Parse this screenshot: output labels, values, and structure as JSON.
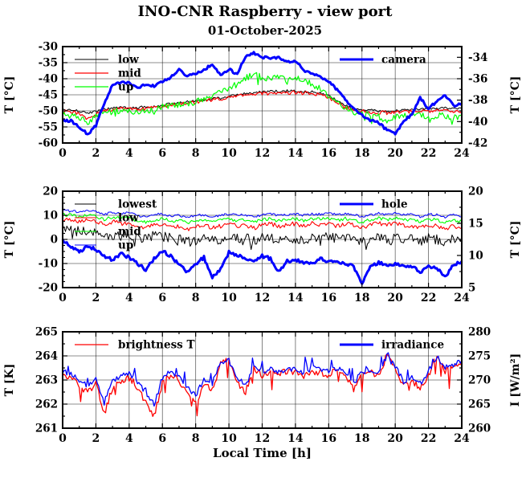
{
  "page": {
    "title": "INO-CNR Raspberry - view port",
    "subtitle": "01-October-2025",
    "xlabel": "Local Time [h]"
  },
  "colors": {
    "black": "#000000",
    "red": "#ff0000",
    "green": "#00ff00",
    "blue": "#0000ff",
    "frame": "#000000",
    "grid": "#000000"
  },
  "chart_data": [
    {
      "type": "line",
      "name": "viewport-temperatures",
      "x_range": [
        0,
        24
      ],
      "axes": {
        "x": {
          "ticks": [
            0,
            2,
            4,
            6,
            8,
            10,
            12,
            14,
            16,
            18,
            20,
            22,
            24
          ],
          "minor_step": 1,
          "label": ""
        },
        "left": {
          "label": "T [°C]",
          "range": [
            -60,
            -30
          ],
          "ticks": [
            -30,
            -35,
            -40,
            -45,
            -50,
            -55,
            -60
          ],
          "minor_step": 2.5
        },
        "right": {
          "label": "T [°C]",
          "range": [
            -42,
            -33
          ],
          "ticks": [
            -34,
            -36,
            -38,
            -40,
            -42
          ],
          "minor_step": 1
        }
      },
      "series": [
        {
          "name": "low",
          "color": "#000000",
          "axis": "left",
          "width": 1.0,
          "noise": 0.4,
          "legend": "left",
          "values": [
            -49.5,
            -49.5,
            -50.0,
            -50.6,
            -50.2,
            -49.6,
            -49.2,
            -49.0,
            -49.0,
            -49.0,
            -48.7,
            -48.6,
            -48.2,
            -47.8,
            -47.6,
            -47.2,
            -47.0,
            -46.6,
            -46.2,
            -46.0,
            -45.5,
            -45.0,
            -44.6,
            -44.4,
            -44.1,
            -44.0,
            -43.9,
            -43.8,
            -43.8,
            -44.0,
            -44.1,
            -44.4,
            -45.4,
            -46.8,
            -48.4,
            -49.4,
            -49.6,
            -49.8,
            -50.0,
            -50.1,
            -50.0,
            -49.8,
            -49.5,
            -49.3,
            -49.5,
            -49.3,
            -49.0,
            -49.3,
            -49.3
          ]
        },
        {
          "name": "mid",
          "color": "#ff0000",
          "axis": "left",
          "width": 1.2,
          "noise": 0.55,
          "legend": "left",
          "values": [
            -50.2,
            -50.4,
            -50.8,
            -52.6,
            -51.0,
            -50.0,
            -49.6,
            -49.4,
            -49.4,
            -49.5,
            -49.2,
            -49.0,
            -48.6,
            -48.2,
            -48.0,
            -47.6,
            -47.3,
            -46.9,
            -46.5,
            -46.3,
            -45.8,
            -45.3,
            -45.0,
            -44.8,
            -44.6,
            -44.5,
            -44.4,
            -44.4,
            -44.3,
            -44.5,
            -44.6,
            -45.0,
            -45.9,
            -47.3,
            -48.9,
            -49.9,
            -50.1,
            -50.3,
            -50.5,
            -50.6,
            -50.5,
            -50.3,
            -50.2,
            -50.0,
            -50.2,
            -50.0,
            -49.8,
            -50.0,
            -50.0
          ]
        },
        {
          "name": "up",
          "color": "#00ff00",
          "axis": "left",
          "width": 1.2,
          "noise": 1.0,
          "spike_prob": 0.05,
          "spike_amp": 3,
          "spike_sign": -1,
          "legend": "left",
          "values": [
            -50.8,
            -51.0,
            -51.6,
            -54.0,
            -51.8,
            -50.6,
            -50.2,
            -50.0,
            -50.0,
            -50.2,
            -49.8,
            -49.6,
            -48.8,
            -48.4,
            -48.0,
            -47.6,
            -47.0,
            -46.4,
            -45.6,
            -44.4,
            -43.2,
            -41.6,
            -39.8,
            -38.6,
            -39.6,
            -40.2,
            -39.6,
            -40.2,
            -39.6,
            -41.0,
            -41.6,
            -43.0,
            -45.0,
            -47.4,
            -49.4,
            -50.4,
            -51.0,
            -51.4,
            -51.6,
            -53.4,
            -52.0,
            -51.6,
            -51.0,
            -51.4,
            -52.0,
            -51.6,
            -51.4,
            -52.0,
            -51.6
          ]
        },
        {
          "name": "camera",
          "color": "#0000ff",
          "axis": "right",
          "width": 3.0,
          "noise": 0.12,
          "legend": "right",
          "values": [
            -40.0,
            -39.9,
            -40.5,
            -41.2,
            -40.4,
            -38.3,
            -36.6,
            -36.3,
            -36.4,
            -36.8,
            -36.6,
            -36.7,
            -36.3,
            -35.9,
            -35.2,
            -35.8,
            -35.5,
            -35.2,
            -34.6,
            -35.7,
            -35.1,
            -35.6,
            -33.9,
            -33.6,
            -34.0,
            -34.1,
            -34.0,
            -34.4,
            -34.3,
            -35.2,
            -35.5,
            -35.8,
            -36.3,
            -37.0,
            -37.9,
            -38.8,
            -39.4,
            -39.9,
            -40.1,
            -40.8,
            -41.1,
            -40.0,
            -39.3,
            -37.8,
            -38.8,
            -38.1,
            -37.6,
            -38.5,
            -38.3
          ]
        }
      ]
    },
    {
      "type": "line",
      "name": "ambient-temperatures",
      "x_range": [
        0,
        24
      ],
      "axes": {
        "x": {
          "ticks": [
            0,
            2,
            4,
            6,
            8,
            10,
            12,
            14,
            16,
            18,
            20,
            22,
            24
          ],
          "minor_step": 1,
          "label": ""
        },
        "left": {
          "label": "T [°C]",
          "range": [
            -20,
            20
          ],
          "ticks": [
            20,
            10,
            0,
            -10,
            -20
          ],
          "minor_step": 2.5
        },
        "right": {
          "label": "T [°C]",
          "range": [
            5,
            20
          ],
          "ticks": [
            20,
            15,
            10,
            5
          ],
          "minor_step": 2.5
        }
      },
      "series": [
        {
          "name": "lowest",
          "color": "#000000",
          "axis": "left",
          "width": 1.0,
          "noise": 2.0,
          "spike_prob": 0.05,
          "spike_amp": 3,
          "spike_sign": -1,
          "legend": "left",
          "values": [
            4.5,
            4.0,
            3.5,
            3.0,
            3.0,
            2.0,
            1.5,
            2.5,
            2.0,
            1.0,
            0.5,
            1.5,
            1.5,
            0.5,
            0.0,
            -0.5,
            -1.0,
            0.5,
            -0.5,
            0.0,
            1.0,
            0.5,
            0.5,
            -0.5,
            1.0,
            0.5,
            -0.5,
            0.5,
            0.5,
            0.0,
            0.5,
            0.5,
            1.0,
            0.5,
            0.5,
            0.0,
            -1.0,
            0.5,
            0.5,
            0.0,
            0.5,
            0.0,
            0.0,
            -1.0,
            0.5,
            0.0,
            -1.0,
            0.0,
            1.0
          ]
        },
        {
          "name": "low",
          "color": "#ff0000",
          "axis": "left",
          "width": 1.1,
          "noise": 0.9,
          "legend": "left",
          "values": [
            8.0,
            8.0,
            7.6,
            8.0,
            7.6,
            6.2,
            7.4,
            6.6,
            7.0,
            5.6,
            4.6,
            6.0,
            6.6,
            5.2,
            5.6,
            4.2,
            5.6,
            6.0,
            4.6,
            5.6,
            6.6,
            5.6,
            6.0,
            4.6,
            6.0,
            6.6,
            5.2,
            6.0,
            6.6,
            5.6,
            6.6,
            6.0,
            6.6,
            5.6,
            6.6,
            6.0,
            4.6,
            6.0,
            6.6,
            6.0,
            6.6,
            6.0,
            5.6,
            4.6,
            6.0,
            5.6,
            4.2,
            5.6,
            4.6
          ]
        },
        {
          "name": "mid",
          "color": "#00ff00",
          "axis": "left",
          "width": 1.1,
          "noise": 0.7,
          "legend": "left",
          "values": [
            10.2,
            10.0,
            9.6,
            10.0,
            9.6,
            8.4,
            9.4,
            8.8,
            9.0,
            7.8,
            7.0,
            8.2,
            8.6,
            7.6,
            7.8,
            6.8,
            7.8,
            8.2,
            7.0,
            7.8,
            8.6,
            7.8,
            8.2,
            7.2,
            8.2,
            8.6,
            7.6,
            8.2,
            8.6,
            7.8,
            8.6,
            8.4,
            8.8,
            8.0,
            8.6,
            8.2,
            7.2,
            8.2,
            8.8,
            8.2,
            8.8,
            8.2,
            8.0,
            7.2,
            8.4,
            8.0,
            7.0,
            8.0,
            7.4
          ]
        },
        {
          "name": "up",
          "color": "#0000ff",
          "axis": "left",
          "width": 1.0,
          "noise": 0.5,
          "legend": "left",
          "values": [
            12.0,
            11.8,
            11.5,
            11.8,
            11.5,
            10.5,
            11.2,
            10.8,
            11.0,
            10.0,
            9.2,
            10.2,
            10.6,
            9.8,
            10.0,
            9.2,
            10.0,
            10.2,
            9.2,
            10.0,
            10.6,
            10.0,
            10.2,
            9.4,
            10.2,
            10.6,
            9.8,
            10.2,
            10.6,
            10.0,
            10.6,
            10.4,
            10.8,
            10.2,
            10.6,
            10.4,
            9.4,
            10.2,
            10.8,
            10.2,
            10.8,
            10.4,
            10.2,
            9.4,
            10.4,
            10.2,
            9.2,
            10.2,
            9.6
          ]
        },
        {
          "name": "hole",
          "color": "#0000ff",
          "axis": "right",
          "width": 3.0,
          "noise": 0.25,
          "legend": "right",
          "values": [
            12.4,
            11.4,
            10.5,
            11.4,
            11.0,
            9.9,
            9.3,
            10.3,
            9.7,
            8.7,
            7.8,
            9.5,
            10.7,
            9.9,
            8.5,
            7.4,
            8.7,
            9.7,
            6.6,
            7.8,
            10.5,
            10.1,
            9.5,
            8.9,
            9.9,
            9.5,
            7.4,
            9.1,
            9.3,
            8.9,
            8.7,
            9.5,
            9.1,
            8.9,
            8.7,
            8.3,
            5.5,
            8.3,
            8.9,
            8.5,
            8.7,
            8.5,
            8.3,
            7.4,
            8.3,
            8.0,
            6.6,
            8.5,
            9.1
          ]
        }
      ]
    },
    {
      "type": "line",
      "name": "brightness-irradiance",
      "x_range": [
        0,
        24
      ],
      "axes": {
        "x": {
          "ticks": [
            0,
            2,
            4,
            6,
            8,
            10,
            12,
            14,
            16,
            18,
            20,
            22,
            24
          ],
          "minor_step": 1,
          "label": "Local Time [h]"
        },
        "left": {
          "label": "T [K]",
          "range": [
            261,
            265
          ],
          "ticks": [
            265,
            264,
            263,
            262,
            261
          ],
          "minor_step": 0.5
        },
        "right": {
          "label": "I [W/m²]",
          "range": [
            260,
            280
          ],
          "ticks": [
            280,
            275,
            270,
            265,
            260
          ],
          "minor_step": 2.5
        }
      },
      "series": [
        {
          "name": "brightness T",
          "color": "#ff0000",
          "axis": "left",
          "width": 1.3,
          "noise": 0.15,
          "spike_prob": 0.05,
          "spike_amp": 0.8,
          "spike_sign": -1,
          "legend": "left",
          "values": [
            263.2,
            263.1,
            262.8,
            262.5,
            262.9,
            261.6,
            262.7,
            263.0,
            263.1,
            262.7,
            262.1,
            261.5,
            262.9,
            263.2,
            263.0,
            262.4,
            262.0,
            262.8,
            262.6,
            263.7,
            263.8,
            262.9,
            262.5,
            263.5,
            263.2,
            263.4,
            263.2,
            263.4,
            263.3,
            263.2,
            263.4,
            263.3,
            263.2,
            263.4,
            263.1,
            262.6,
            263.2,
            263.3,
            263.2,
            264.0,
            263.5,
            262.7,
            263.0,
            262.6,
            263.2,
            264.0,
            263.4,
            263.5,
            263.8
          ]
        },
        {
          "name": "irradiance",
          "color": "#0000ff",
          "axis": "right",
          "width": 1.3,
          "noise": 0.6,
          "spike_prob": 0.07,
          "spike_amp": 2.8,
          "spike_sign": 1,
          "legend": "right",
          "values": [
            271.7,
            271.3,
            270.1,
            268.9,
            270.5,
            265.3,
            269.7,
            270.9,
            271.3,
            269.7,
            267.3,
            264.9,
            270.5,
            271.7,
            270.9,
            268.5,
            266.9,
            270.1,
            269.3,
            273.7,
            274.1,
            270.5,
            268.9,
            272.9,
            271.7,
            272.5,
            271.7,
            272.5,
            272.1,
            271.7,
            272.5,
            272.1,
            271.7,
            272.5,
            271.3,
            269.3,
            271.7,
            272.1,
            271.7,
            274.9,
            272.9,
            269.7,
            270.9,
            269.3,
            271.7,
            274.9,
            272.5,
            272.9,
            274.1
          ]
        }
      ]
    }
  ]
}
